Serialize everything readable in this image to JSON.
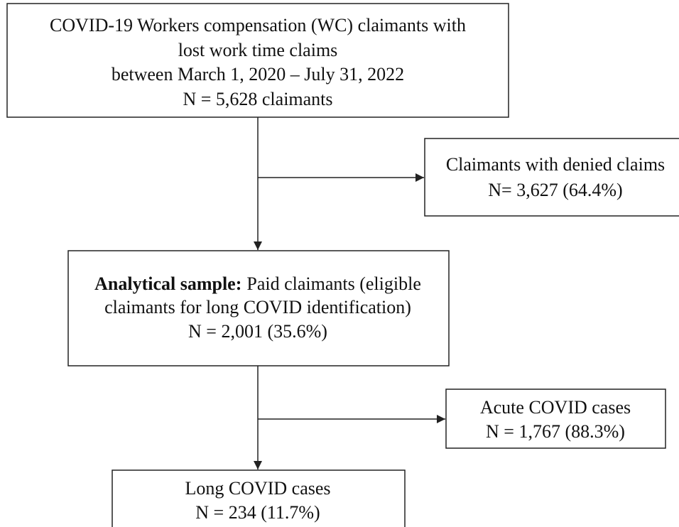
{
  "nodes": [
    {
      "lines": [
        "COVID-19 Workers compensation (WC) claimants with",
        "lost work time claims",
        "between March 1, 2020 – July 31, 2022",
        "N = 5,628 claimants"
      ]
    },
    {
      "lines": [
        "Claimants with denied claims",
        "N= 3,627 (64.4%)"
      ]
    },
    {
      "bold": "Analytical sample:",
      "lines": [
        "Paid claimants (eligible",
        "claimants for long COVID identification)",
        "N = 2,001 (35.6%)"
      ]
    },
    {
      "lines": [
        "Acute COVID cases",
        "N = 1,767 (88.3%)"
      ]
    },
    {
      "lines": [
        "Long COVID cases",
        "N = 234 (11.7%)"
      ]
    }
  ]
}
